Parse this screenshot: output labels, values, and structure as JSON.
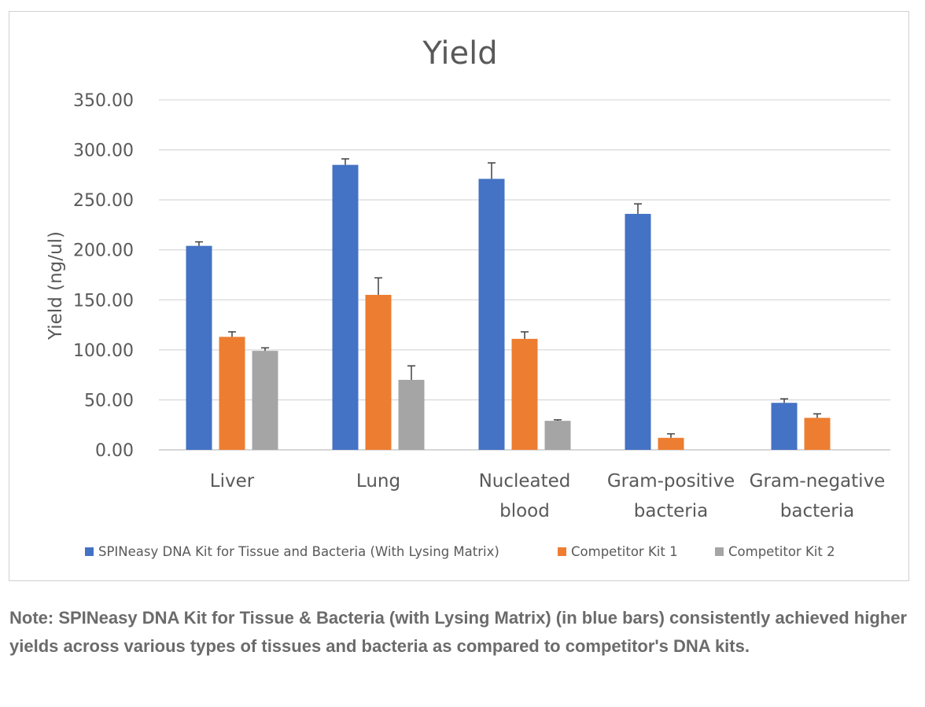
{
  "chart_data": {
    "type": "bar",
    "title": "Yield",
    "xlabel": "",
    "ylabel": "Yield (ng/ul)",
    "ylim": [
      0,
      350
    ],
    "y_ticks": [
      0,
      50,
      100,
      150,
      200,
      250,
      300,
      350
    ],
    "y_tick_labels": [
      "0.00",
      "50.00",
      "100.00",
      "150.00",
      "200.00",
      "250.00",
      "300.00",
      "350.00"
    ],
    "grid": true,
    "legend_position": "bottom",
    "categories": [
      [
        "Liver"
      ],
      [
        "Lung"
      ],
      [
        "Nucleated",
        "blood"
      ],
      [
        "Gram-positive",
        "bacteria"
      ],
      [
        "Gram-negative",
        "bacteria"
      ]
    ],
    "series": [
      {
        "name": "SPINeasy DNA Kit for Tissue and Bacteria (With Lysing Matrix)",
        "color": "#4472c4",
        "values": [
          204,
          285,
          271,
          236,
          47
        ],
        "errors": [
          4,
          6,
          16,
          10,
          4
        ]
      },
      {
        "name": "Competitor Kit 1",
        "color": "#ed7d31",
        "values": [
          113,
          155,
          111,
          12,
          32
        ],
        "errors": [
          5,
          17,
          7,
          4,
          4
        ]
      },
      {
        "name": "Competitor Kit 2",
        "color": "#a5a5a5",
        "values": [
          99,
          70,
          29,
          null,
          null
        ],
        "errors": [
          3,
          14,
          1,
          null,
          null
        ]
      }
    ]
  },
  "caption": "Note: SPINeasy DNA Kit for Tissue & Bacteria (with Lysing Matrix) (in blue bars) consistently achieved higher yields across various types of tissues and bacteria as compared to competitor's DNA kits."
}
